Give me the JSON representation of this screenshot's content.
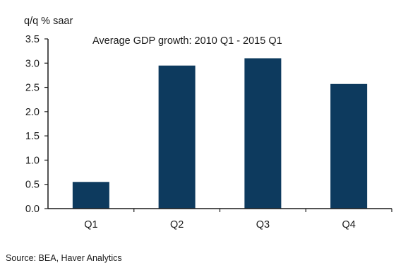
{
  "chart_data": {
    "type": "bar",
    "title": "Average GDP growth: 2010  Q1 - 2015 Q1",
    "ylabel": "q/q  % saar",
    "xlabel": "",
    "categories": [
      "Q1",
      "Q2",
      "Q3",
      "Q4"
    ],
    "values": [
      0.55,
      2.95,
      3.1,
      2.57
    ],
    "ylim": [
      0,
      3.5
    ],
    "yticks": [
      "0.0",
      "0.5",
      "1.0",
      "1.5",
      "2.0",
      "2.5",
      "3.0",
      "3.5"
    ],
    "bar_color": "#0d3a5e",
    "grid": false,
    "legend": "none"
  },
  "source": "Source: BEA, Haver Analytics"
}
